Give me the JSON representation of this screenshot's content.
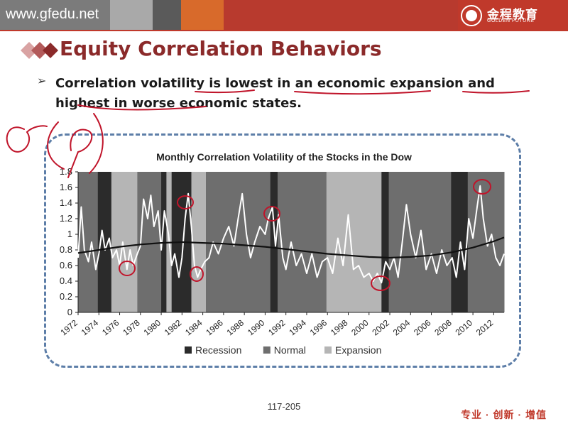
{
  "header": {
    "site_url": "www.gfedu.net",
    "logo_text": "金程教育",
    "logo_sub": "GOLDEN FUTURE",
    "colors": {
      "bar": "#7b7b7b",
      "accent": "#c0392b",
      "title": "#8b2a2a"
    }
  },
  "slide": {
    "title": "Equity Correlation Behaviors",
    "bullet": {
      "arrow": "➢",
      "parts": [
        "Correlation volatility ",
        "is lowest",
        " in an ",
        "economic expansion",
        " and ",
        "highest in",
        " worse economic states."
      ]
    },
    "page_number": "117-205",
    "slogan": "专业 · 创新 · 增值"
  },
  "chart_data": {
    "type": "area",
    "title": "Monthly Correlation Volatility of the Stocks in the Dow",
    "ylim": [
      0,
      1.8
    ],
    "yticks": [
      "0",
      "0.2",
      "0.4",
      "0.6",
      "0.8",
      "1",
      "1.2",
      "1.4",
      "1.6",
      "1.8"
    ],
    "xlim": [
      1972,
      2013
    ],
    "xticks": [
      "1972",
      "1974",
      "1976",
      "1978",
      "1980",
      "1982",
      "1984",
      "1986",
      "1988",
      "1990",
      "1992",
      "1994",
      "1996",
      "1998",
      "2000",
      "2002",
      "2004",
      "2006",
      "2008",
      "2010",
      "2012"
    ],
    "legend": [
      {
        "name": "Recession",
        "color": "#2b2b2b"
      },
      {
        "name": "Normal",
        "color": "#6e6e6e"
      },
      {
        "name": "Expansion",
        "color": "#b5b5b5"
      }
    ],
    "legend_position": "bottom",
    "regimes": [
      {
        "start": 1972.0,
        "end": 1973.9,
        "state": "Normal"
      },
      {
        "start": 1973.9,
        "end": 1975.2,
        "state": "Recession"
      },
      {
        "start": 1975.2,
        "end": 1977.7,
        "state": "Expansion"
      },
      {
        "start": 1977.7,
        "end": 1980.0,
        "state": "Normal"
      },
      {
        "start": 1980.0,
        "end": 1980.5,
        "state": "Recession"
      },
      {
        "start": 1980.5,
        "end": 1981.0,
        "state": "Expansion"
      },
      {
        "start": 1981.0,
        "end": 1982.9,
        "state": "Recession"
      },
      {
        "start": 1982.9,
        "end": 1984.3,
        "state": "Expansion"
      },
      {
        "start": 1984.3,
        "end": 1990.5,
        "state": "Normal"
      },
      {
        "start": 1990.5,
        "end": 1991.2,
        "state": "Recession"
      },
      {
        "start": 1991.2,
        "end": 1995.9,
        "state": "Normal"
      },
      {
        "start": 1995.9,
        "end": 2001.2,
        "state": "Expansion"
      },
      {
        "start": 2001.2,
        "end": 2001.9,
        "state": "Recession"
      },
      {
        "start": 2001.9,
        "end": 2007.9,
        "state": "Normal"
      },
      {
        "start": 2007.9,
        "end": 2009.5,
        "state": "Recession"
      },
      {
        "start": 2009.5,
        "end": 2013.0,
        "state": "Normal"
      }
    ],
    "series": [
      {
        "name": "Correlation volatility",
        "color": "#ffffff",
        "x": [
          1972.0,
          1972.3,
          1972.6,
          1973.0,
          1973.3,
          1973.7,
          1974.0,
          1974.3,
          1974.6,
          1975.0,
          1975.3,
          1975.7,
          1976.0,
          1976.3,
          1976.7,
          1977.0,
          1977.3,
          1977.7,
          1978.0,
          1978.3,
          1978.7,
          1979.0,
          1979.3,
          1979.7,
          1980.0,
          1980.3,
          1980.7,
          1981.0,
          1981.3,
          1981.7,
          1982.0,
          1982.3,
          1982.6,
          1982.9,
          1983.2,
          1983.5,
          1983.8,
          1984.2,
          1984.6,
          1985.0,
          1985.5,
          1986.0,
          1986.5,
          1987.0,
          1987.4,
          1987.8,
          1988.2,
          1988.6,
          1989.0,
          1989.5,
          1990.0,
          1990.3,
          1990.7,
          1991.0,
          1991.3,
          1991.7,
          1992.0,
          1992.5,
          1993.0,
          1993.5,
          1994.0,
          1994.5,
          1995.0,
          1995.5,
          1996.0,
          1996.5,
          1997.0,
          1997.5,
          1998.0,
          1998.5,
          1999.0,
          1999.5,
          2000.0,
          2000.4,
          2000.8,
          2001.2,
          2001.6,
          2002.0,
          2002.4,
          2002.8,
          2003.2,
          2003.6,
          2004.0,
          2004.5,
          2005.0,
          2005.5,
          2006.0,
          2006.5,
          2007.0,
          2007.5,
          2008.0,
          2008.4,
          2008.8,
          2009.2,
          2009.6,
          2010.0,
          2010.4,
          2010.7,
          2011.0,
          2011.4,
          2011.8,
          2012.2,
          2012.6,
          2013.0
        ],
        "y": [
          0.7,
          1.35,
          0.8,
          0.65,
          0.9,
          0.55,
          0.75,
          1.05,
          0.8,
          0.95,
          0.7,
          0.8,
          0.6,
          0.9,
          0.55,
          0.8,
          0.6,
          0.75,
          0.85,
          1.45,
          1.2,
          1.5,
          1.1,
          1.3,
          0.8,
          1.3,
          1.0,
          0.6,
          0.75,
          0.45,
          0.7,
          1.2,
          1.52,
          1.1,
          0.6,
          0.45,
          0.55,
          0.65,
          0.7,
          0.9,
          0.75,
          0.95,
          1.1,
          0.85,
          1.2,
          1.52,
          1.0,
          0.7,
          0.9,
          1.1,
          1.0,
          1.2,
          1.35,
          0.85,
          1.25,
          0.7,
          0.55,
          0.9,
          0.6,
          0.75,
          0.5,
          0.75,
          0.45,
          0.65,
          0.7,
          0.5,
          0.95,
          0.6,
          1.25,
          0.55,
          0.6,
          0.45,
          0.5,
          0.4,
          0.5,
          0.38,
          0.65,
          0.55,
          0.7,
          0.45,
          0.9,
          1.38,
          1.0,
          0.7,
          1.05,
          0.55,
          0.75,
          0.5,
          0.8,
          0.6,
          0.7,
          0.45,
          0.9,
          0.55,
          1.2,
          0.95,
          1.35,
          1.62,
          1.2,
          0.85,
          1.0,
          0.7,
          0.6,
          0.75
        ]
      },
      {
        "name": "Trend",
        "color": "#111111",
        "x": [
          1972,
          1974,
          1976,
          1978,
          1980,
          1982,
          1984,
          1986,
          1988,
          1990,
          1992,
          1994,
          1996,
          1998,
          2000,
          2002,
          2004,
          2006,
          2008,
          2010,
          2012,
          2013
        ],
        "y": [
          0.76,
          0.8,
          0.84,
          0.87,
          0.89,
          0.9,
          0.89,
          0.88,
          0.86,
          0.84,
          0.81,
          0.78,
          0.75,
          0.73,
          0.71,
          0.7,
          0.71,
          0.73,
          0.77,
          0.83,
          0.91,
          0.96
        ]
      }
    ]
  }
}
